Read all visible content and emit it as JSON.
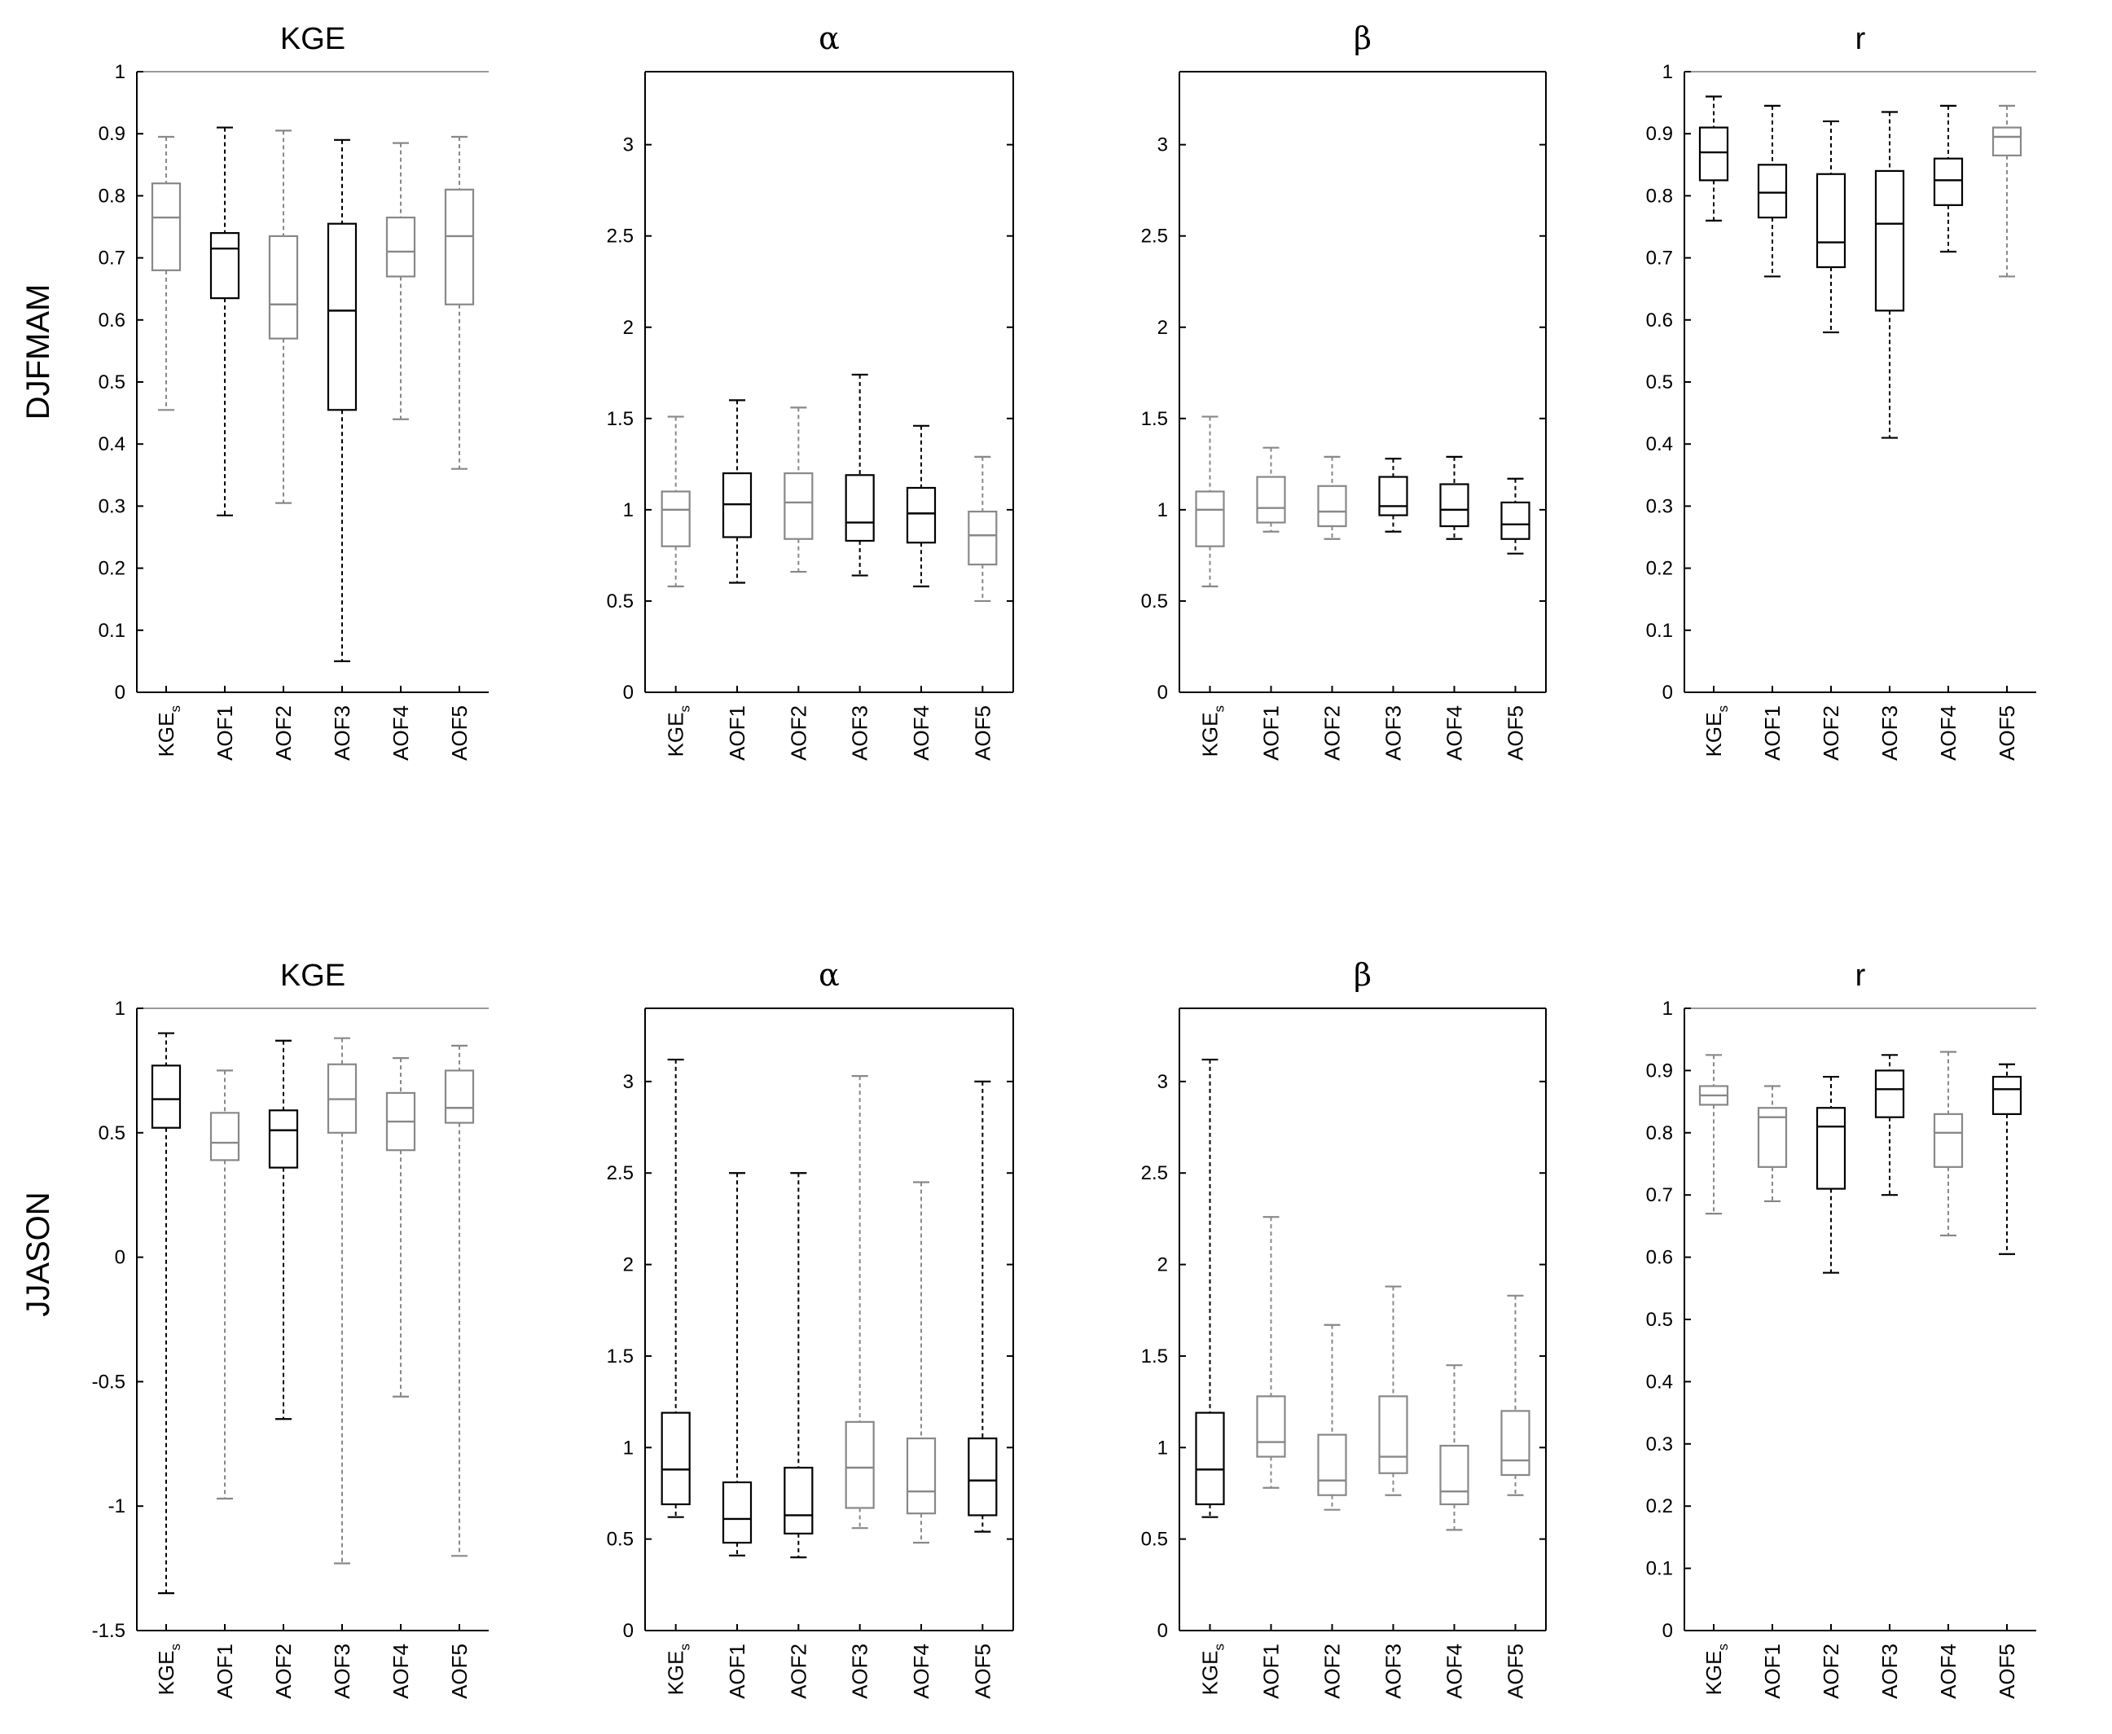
{
  "row_labels": [
    "DJFMAM",
    "JJASON"
  ],
  "chart_data": [
    {
      "type": "box",
      "title": "KGE",
      "row": 0,
      "col": 0,
      "ylim": [
        0,
        1
      ],
      "yticks": [
        0,
        0.1,
        0.2,
        0.3,
        0.4,
        0.5,
        0.6,
        0.7,
        0.8,
        0.9,
        1
      ],
      "yticklabels": [
        "0",
        "0.1",
        "0.2",
        "0.3",
        "0.4",
        "0.5",
        "0.6",
        "0.7",
        "0.8",
        "0.9",
        "1"
      ],
      "frame": "left-top",
      "categories": [
        {
          "base": "KGE",
          "sub": "s"
        },
        {
          "base": "AOF1",
          "sub": ""
        },
        {
          "base": "AOF2",
          "sub": ""
        },
        {
          "base": "AOF3",
          "sub": ""
        },
        {
          "base": "AOF4",
          "sub": ""
        },
        {
          "base": "AOF5",
          "sub": ""
        }
      ],
      "boxes": [
        {
          "min": 0.455,
          "q1": 0.68,
          "median": 0.765,
          "q3": 0.82,
          "max": 0.895,
          "color": "#888888"
        },
        {
          "min": 0.285,
          "q1": 0.635,
          "median": 0.715,
          "q3": 0.74,
          "max": 0.91,
          "color": "#000000"
        },
        {
          "min": 0.305,
          "q1": 0.57,
          "median": 0.625,
          "q3": 0.735,
          "max": 0.905,
          "color": "#888888"
        },
        {
          "min": 0.05,
          "q1": 0.455,
          "median": 0.615,
          "q3": 0.755,
          "max": 0.89,
          "color": "#000000"
        },
        {
          "min": 0.44,
          "q1": 0.67,
          "median": 0.71,
          "q3": 0.765,
          "max": 0.885,
          "color": "#888888"
        },
        {
          "min": 0.36,
          "q1": 0.625,
          "median": 0.735,
          "q3": 0.81,
          "max": 0.895,
          "color": "#888888"
        }
      ]
    },
    {
      "type": "box",
      "title": "α",
      "row": 0,
      "col": 1,
      "ylim": [
        0,
        3.4
      ],
      "yticks": [
        0,
        0.5,
        1,
        1.5,
        2,
        2.5,
        3
      ],
      "yticklabels": [
        "0",
        "0.5",
        "1",
        "1.5",
        "2",
        "2.5",
        "3"
      ],
      "frame": "full",
      "categories": [
        {
          "base": "KGE",
          "sub": "s"
        },
        {
          "base": "AOF1",
          "sub": ""
        },
        {
          "base": "AOF2",
          "sub": ""
        },
        {
          "base": "AOF3",
          "sub": ""
        },
        {
          "base": "AOF4",
          "sub": ""
        },
        {
          "base": "AOF5",
          "sub": ""
        }
      ],
      "boxes": [
        {
          "min": 0.58,
          "q1": 0.8,
          "median": 1.0,
          "q3": 1.1,
          "max": 1.51,
          "color": "#888888"
        },
        {
          "min": 0.6,
          "q1": 0.85,
          "median": 1.03,
          "q3": 1.2,
          "max": 1.6,
          "color": "#000000"
        },
        {
          "min": 0.66,
          "q1": 0.84,
          "median": 1.04,
          "q3": 1.2,
          "max": 1.56,
          "color": "#888888"
        },
        {
          "min": 0.64,
          "q1": 0.83,
          "median": 0.93,
          "q3": 1.19,
          "max": 1.74,
          "color": "#000000"
        },
        {
          "min": 0.58,
          "q1": 0.82,
          "median": 0.98,
          "q3": 1.12,
          "max": 1.46,
          "color": "#000000"
        },
        {
          "min": 0.5,
          "q1": 0.7,
          "median": 0.86,
          "q3": 0.99,
          "max": 1.29,
          "color": "#888888"
        }
      ]
    },
    {
      "type": "box",
      "title": "β",
      "row": 0,
      "col": 2,
      "ylim": [
        0,
        3.4
      ],
      "yticks": [
        0,
        0.5,
        1,
        1.5,
        2,
        2.5,
        3
      ],
      "yticklabels": [
        "0",
        "0.5",
        "1",
        "1.5",
        "2",
        "2.5",
        "3"
      ],
      "frame": "full",
      "categories": [
        {
          "base": "KGE",
          "sub": "s"
        },
        {
          "base": "AOF1",
          "sub": ""
        },
        {
          "base": "AOF2",
          "sub": ""
        },
        {
          "base": "AOF3",
          "sub": ""
        },
        {
          "base": "AOF4",
          "sub": ""
        },
        {
          "base": "AOF5",
          "sub": ""
        }
      ],
      "boxes": [
        {
          "min": 0.58,
          "q1": 0.8,
          "median": 1.0,
          "q3": 1.1,
          "max": 1.51,
          "color": "#888888"
        },
        {
          "min": 0.88,
          "q1": 0.93,
          "median": 1.01,
          "q3": 1.18,
          "max": 1.34,
          "color": "#888888"
        },
        {
          "min": 0.84,
          "q1": 0.91,
          "median": 0.99,
          "q3": 1.13,
          "max": 1.29,
          "color": "#888888"
        },
        {
          "min": 0.88,
          "q1": 0.97,
          "median": 1.02,
          "q3": 1.18,
          "max": 1.28,
          "color": "#000000"
        },
        {
          "min": 0.84,
          "q1": 0.91,
          "median": 1.0,
          "q3": 1.14,
          "max": 1.29,
          "color": "#000000"
        },
        {
          "min": 0.76,
          "q1": 0.84,
          "median": 0.92,
          "q3": 1.04,
          "max": 1.17,
          "color": "#000000"
        }
      ]
    },
    {
      "type": "box",
      "title": "r",
      "row": 0,
      "col": 3,
      "ylim": [
        0,
        1
      ],
      "yticks": [
        0,
        0.1,
        0.2,
        0.3,
        0.4,
        0.5,
        0.6,
        0.7,
        0.8,
        0.9,
        1
      ],
      "yticklabels": [
        "0",
        "0.1",
        "0.2",
        "0.3",
        "0.4",
        "0.5",
        "0.6",
        "0.7",
        "0.8",
        "0.9",
        "1"
      ],
      "frame": "left-top",
      "categories": [
        {
          "base": "KGE",
          "sub": "s"
        },
        {
          "base": "AOF1",
          "sub": ""
        },
        {
          "base": "AOF2",
          "sub": ""
        },
        {
          "base": "AOF3",
          "sub": ""
        },
        {
          "base": "AOF4",
          "sub": ""
        },
        {
          "base": "AOF5",
          "sub": ""
        }
      ],
      "boxes": [
        {
          "min": 0.76,
          "q1": 0.825,
          "median": 0.87,
          "q3": 0.91,
          "max": 0.96,
          "color": "#000000"
        },
        {
          "min": 0.67,
          "q1": 0.765,
          "median": 0.805,
          "q3": 0.85,
          "max": 0.945,
          "color": "#000000"
        },
        {
          "min": 0.58,
          "q1": 0.685,
          "median": 0.725,
          "q3": 0.835,
          "max": 0.92,
          "color": "#000000"
        },
        {
          "min": 0.41,
          "q1": 0.615,
          "median": 0.755,
          "q3": 0.84,
          "max": 0.935,
          "color": "#000000"
        },
        {
          "min": 0.71,
          "q1": 0.785,
          "median": 0.825,
          "q3": 0.86,
          "max": 0.945,
          "color": "#000000"
        },
        {
          "min": 0.67,
          "q1": 0.865,
          "median": 0.895,
          "q3": 0.91,
          "max": 0.945,
          "color": "#888888"
        }
      ]
    },
    {
      "type": "box",
      "title": "KGE",
      "row": 1,
      "col": 0,
      "ylim": [
        -1.5,
        1
      ],
      "yticks": [
        -1.5,
        -1,
        -0.5,
        0,
        0.5,
        1
      ],
      "yticklabels": [
        "-1.5",
        "-1",
        "-0.5",
        "0",
        "0.5",
        "1"
      ],
      "frame": "left-top",
      "categories": [
        {
          "base": "KGE",
          "sub": "s"
        },
        {
          "base": "AOF1",
          "sub": ""
        },
        {
          "base": "AOF2",
          "sub": ""
        },
        {
          "base": "AOF3",
          "sub": ""
        },
        {
          "base": "AOF4",
          "sub": ""
        },
        {
          "base": "AOF5",
          "sub": ""
        }
      ],
      "boxes": [
        {
          "min": -1.35,
          "q1": 0.52,
          "median": 0.635,
          "q3": 0.77,
          "max": 0.9,
          "color": "#000000"
        },
        {
          "min": -0.97,
          "q1": 0.39,
          "median": 0.46,
          "q3": 0.58,
          "max": 0.75,
          "color": "#888888"
        },
        {
          "min": -0.65,
          "q1": 0.36,
          "median": 0.51,
          "q3": 0.59,
          "max": 0.87,
          "color": "#000000"
        },
        {
          "min": -1.23,
          "q1": 0.5,
          "median": 0.635,
          "q3": 0.775,
          "max": 0.88,
          "color": "#888888"
        },
        {
          "min": -0.56,
          "q1": 0.43,
          "median": 0.545,
          "q3": 0.66,
          "max": 0.8,
          "color": "#888888"
        },
        {
          "min": -1.2,
          "q1": 0.54,
          "median": 0.6,
          "q3": 0.75,
          "max": 0.85,
          "color": "#888888"
        }
      ]
    },
    {
      "type": "box",
      "title": "α",
      "row": 1,
      "col": 1,
      "ylim": [
        0,
        3.4
      ],
      "yticks": [
        0,
        0.5,
        1,
        1.5,
        2,
        2.5,
        3
      ],
      "yticklabels": [
        "0",
        "0.5",
        "1",
        "1.5",
        "2",
        "2.5",
        "3"
      ],
      "frame": "full",
      "categories": [
        {
          "base": "KGE",
          "sub": "s"
        },
        {
          "base": "AOF1",
          "sub": ""
        },
        {
          "base": "AOF2",
          "sub": ""
        },
        {
          "base": "AOF3",
          "sub": ""
        },
        {
          "base": "AOF4",
          "sub": ""
        },
        {
          "base": "AOF5",
          "sub": ""
        }
      ],
      "boxes": [
        {
          "min": 0.62,
          "q1": 0.69,
          "median": 0.88,
          "q3": 1.19,
          "max": 3.12,
          "color": "#000000"
        },
        {
          "min": 0.41,
          "q1": 0.48,
          "median": 0.61,
          "q3": 0.81,
          "max": 2.5,
          "color": "#000000"
        },
        {
          "min": 0.4,
          "q1": 0.53,
          "median": 0.63,
          "q3": 0.89,
          "max": 2.5,
          "color": "#000000"
        },
        {
          "min": 0.56,
          "q1": 0.67,
          "median": 0.89,
          "q3": 1.14,
          "max": 3.03,
          "color": "#888888"
        },
        {
          "min": 0.48,
          "q1": 0.64,
          "median": 0.76,
          "q3": 1.05,
          "max": 2.45,
          "color": "#888888"
        },
        {
          "min": 0.54,
          "q1": 0.63,
          "median": 0.82,
          "q3": 1.05,
          "max": 3.0,
          "color": "#000000"
        }
      ]
    },
    {
      "type": "box",
      "title": "β",
      "row": 1,
      "col": 2,
      "ylim": [
        0,
        3.4
      ],
      "yticks": [
        0,
        0.5,
        1,
        1.5,
        2,
        2.5,
        3
      ],
      "yticklabels": [
        "0",
        "0.5",
        "1",
        "1.5",
        "2",
        "2.5",
        "3"
      ],
      "frame": "full",
      "categories": [
        {
          "base": "KGE",
          "sub": "s"
        },
        {
          "base": "AOF1",
          "sub": ""
        },
        {
          "base": "AOF2",
          "sub": ""
        },
        {
          "base": "AOF3",
          "sub": ""
        },
        {
          "base": "AOF4",
          "sub": ""
        },
        {
          "base": "AOF5",
          "sub": ""
        }
      ],
      "boxes": [
        {
          "min": 0.62,
          "q1": 0.69,
          "median": 0.88,
          "q3": 1.19,
          "max": 3.12,
          "color": "#000000"
        },
        {
          "min": 0.78,
          "q1": 0.95,
          "median": 1.03,
          "q3": 1.28,
          "max": 2.26,
          "color": "#888888"
        },
        {
          "min": 0.66,
          "q1": 0.74,
          "median": 0.82,
          "q3": 1.07,
          "max": 1.67,
          "color": "#888888"
        },
        {
          "min": 0.74,
          "q1": 0.86,
          "median": 0.95,
          "q3": 1.28,
          "max": 1.88,
          "color": "#888888"
        },
        {
          "min": 0.55,
          "q1": 0.69,
          "median": 0.76,
          "q3": 1.01,
          "max": 1.45,
          "color": "#888888"
        },
        {
          "min": 0.74,
          "q1": 0.85,
          "median": 0.93,
          "q3": 1.2,
          "max": 1.83,
          "color": "#888888"
        }
      ]
    },
    {
      "type": "box",
      "title": "r",
      "row": 1,
      "col": 3,
      "ylim": [
        0,
        1
      ],
      "yticks": [
        0,
        0.1,
        0.2,
        0.3,
        0.4,
        0.5,
        0.6,
        0.7,
        0.8,
        0.9,
        1
      ],
      "yticklabels": [
        "0",
        "0.1",
        "0.2",
        "0.3",
        "0.4",
        "0.5",
        "0.6",
        "0.7",
        "0.8",
        "0.9",
        "1"
      ],
      "frame": "left-top",
      "categories": [
        {
          "base": "KGE",
          "sub": "s"
        },
        {
          "base": "AOF1",
          "sub": ""
        },
        {
          "base": "AOF2",
          "sub": ""
        },
        {
          "base": "AOF3",
          "sub": ""
        },
        {
          "base": "AOF4",
          "sub": ""
        },
        {
          "base": "AOF5",
          "sub": ""
        }
      ],
      "boxes": [
        {
          "min": 0.67,
          "q1": 0.845,
          "median": 0.86,
          "q3": 0.875,
          "max": 0.925,
          "color": "#888888"
        },
        {
          "min": 0.69,
          "q1": 0.745,
          "median": 0.825,
          "q3": 0.84,
          "max": 0.875,
          "color": "#888888"
        },
        {
          "min": 0.575,
          "q1": 0.71,
          "median": 0.81,
          "q3": 0.84,
          "max": 0.89,
          "color": "#000000"
        },
        {
          "min": 0.7,
          "q1": 0.825,
          "median": 0.87,
          "q3": 0.9,
          "max": 0.925,
          "color": "#000000"
        },
        {
          "min": 0.635,
          "q1": 0.745,
          "median": 0.8,
          "q3": 0.83,
          "max": 0.93,
          "color": "#888888"
        },
        {
          "min": 0.605,
          "q1": 0.83,
          "median": 0.87,
          "q3": 0.89,
          "max": 0.91,
          "color": "#000000"
        }
      ]
    }
  ]
}
